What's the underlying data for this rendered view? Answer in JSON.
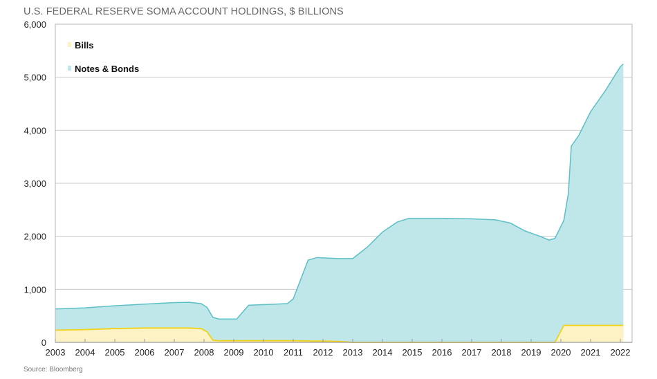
{
  "chart_data": {
    "type": "area",
    "stacked": true,
    "title": "U.S. FEDERAL RESERVE SOMA ACCOUNT HOLDINGS, $ BILLIONS",
    "source": "Source: Bloomberg",
    "xlabel": "",
    "ylabel": "",
    "ylim": [
      0,
      6000
    ],
    "xlim": [
      2003,
      2022.4
    ],
    "yticks": [
      0,
      1000,
      2000,
      3000,
      4000,
      5000,
      6000
    ],
    "ytick_labels": [
      "0",
      "1,000",
      "2,000",
      "3,000",
      "4,000",
      "5,000",
      "6,000"
    ],
    "xticks": [
      "2003",
      "2004",
      "2005",
      "2006",
      "2007",
      "2008",
      "2009",
      "2010",
      "2011",
      "2012",
      "2013",
      "2014",
      "2015",
      "2016",
      "2017",
      "2018",
      "2019",
      "2020",
      "2021",
      "2022"
    ],
    "grid": "horizontal",
    "legend_position": "top-left",
    "x": [
      2003,
      2004,
      2005,
      2006,
      2007,
      2007.5,
      2007.9,
      2008.1,
      2008.3,
      2008.5,
      2009.1,
      2009.5,
      2010.8,
      2011.0,
      2011.5,
      2011.8,
      2012.5,
      2013.0,
      2013.5,
      2014.0,
      2014.5,
      2014.9,
      2016.0,
      2017.0,
      2017.8,
      2018.3,
      2018.8,
      2019.3,
      2019.6,
      2019.8,
      2020.1,
      2020.25,
      2020.35,
      2020.6,
      2021.0,
      2021.5,
      2022.0,
      2022.1
    ],
    "series": [
      {
        "name": "Bills",
        "color": "#fcf2c4",
        "line": "#f0d21c",
        "values": [
          230,
          240,
          260,
          270,
          270,
          270,
          260,
          200,
          40,
          30,
          30,
          30,
          30,
          30,
          25,
          25,
          20,
          0,
          0,
          0,
          0,
          0,
          0,
          0,
          0,
          0,
          0,
          0,
          0,
          0,
          320,
          320,
          320,
          320,
          320,
          320,
          320,
          320
        ]
      },
      {
        "name": "Notes & Bonds",
        "color": "#bfe7ea",
        "line": "#5cbfc6",
        "values": [
          400,
          410,
          430,
          450,
          480,
          485,
          470,
          460,
          430,
          410,
          410,
          670,
          700,
          790,
          1525,
          1575,
          1560,
          1580,
          1800,
          2080,
          2270,
          2340,
          2340,
          2330,
          2310,
          2250,
          2100,
          2000,
          1930,
          1960,
          1980,
          2480,
          3380,
          3580,
          4030,
          4430,
          4880,
          4930
        ]
      }
    ]
  }
}
